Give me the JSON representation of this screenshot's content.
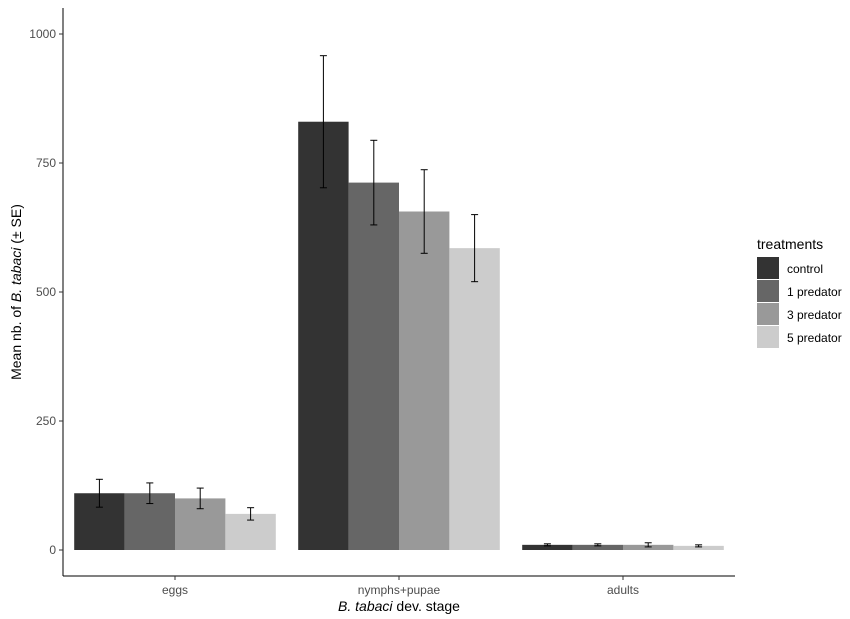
{
  "chart_data": {
    "type": "bar",
    "title": "",
    "xlabel_italic": "B. tabaci",
    "xlabel_rest": " dev. stage",
    "ylabel_prefix": "Mean nb. of ",
    "ylabel_italic": "B. tabaci",
    "ylabel_suffix": " (± SE)",
    "categories": [
      "eggs",
      "nymphs+pupae",
      "adults"
    ],
    "ylim": [
      0,
      1000
    ],
    "yticks": [
      0,
      250,
      500,
      750,
      1000
    ],
    "legend_title": "treatments",
    "legend_position": "right",
    "grid": false,
    "series": [
      {
        "name": "control",
        "color": "#333333",
        "values": [
          110,
          830,
          10
        ],
        "se": [
          27,
          128,
          2
        ]
      },
      {
        "name": "1 predator",
        "color": "#666666",
        "values": [
          110,
          712,
          10
        ],
        "se": [
          20,
          82,
          2
        ]
      },
      {
        "name": "3 predator",
        "color": "#999999",
        "values": [
          100,
          656,
          10
        ],
        "se": [
          20,
          81,
          4
        ]
      },
      {
        "name": "5 predator",
        "color": "#cccccc",
        "values": [
          70,
          585,
          8
        ],
        "se": [
          12,
          65,
          2
        ]
      }
    ]
  }
}
